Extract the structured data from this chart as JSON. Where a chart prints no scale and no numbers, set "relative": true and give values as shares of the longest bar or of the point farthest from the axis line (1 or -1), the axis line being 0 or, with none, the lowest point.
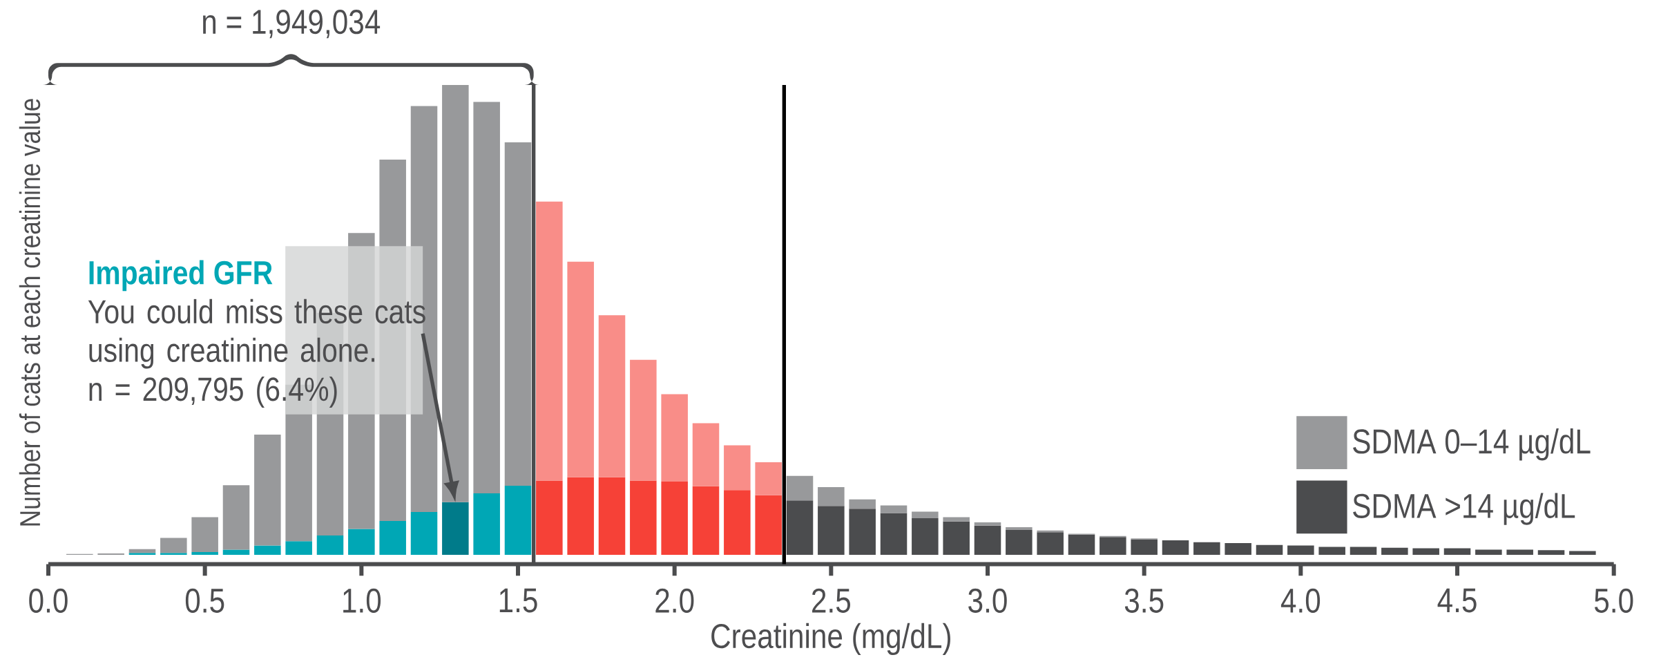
{
  "chart_data": {
    "type": "bar",
    "stacked": true,
    "relative": true,
    "xlabel": "Creatinine (mg/dL)",
    "ylabel": "Number of cats at each creatinine value",
    "x": [
      0.1,
      0.2,
      0.3,
      0.4,
      0.5,
      0.6,
      0.7,
      0.8,
      0.9,
      1.0,
      1.1,
      1.2,
      1.3,
      1.4,
      1.5,
      1.6,
      1.7,
      1.8,
      1.9,
      2.0,
      2.1,
      2.2,
      2.3,
      2.4,
      2.5,
      2.6,
      2.7,
      2.8,
      2.9,
      3.0,
      3.1,
      3.2,
      3.3,
      3.4,
      3.5,
      3.6,
      3.7,
      3.8,
      3.9,
      4.0,
      4.1,
      4.2,
      4.3,
      4.4,
      4.5,
      4.6,
      4.7,
      4.8,
      4.9
    ],
    "xlim": [
      0,
      5
    ],
    "xticks": [
      {
        "value": 0,
        "label": "0.0"
      },
      0.5,
      {
        "value": 1,
        "label": "1.0"
      },
      1.5,
      {
        "value": 2,
        "label": "2.0"
      },
      2.5,
      {
        "value": 3,
        "label": "3.0"
      },
      3.5,
      {
        "value": 4,
        "label": "4.0"
      },
      4.5,
      {
        "value": 5,
        "label": "5.0"
      }
    ],
    "series": [
      {
        "name": "SDMA >14 µg/dL",
        "color": "#4b4c4e",
        "values": [
          0,
          0,
          0.004,
          0.004,
          0.006,
          0.011,
          0.02,
          0.029,
          0.041,
          0.055,
          0.072,
          0.091,
          0.112,
          0.131,
          0.147,
          0.158,
          0.165,
          0.165,
          0.158,
          0.156,
          0.146,
          0.138,
          0.127,
          0.116,
          0.104,
          0.098,
          0.089,
          0.078,
          0.071,
          0.062,
          0.053,
          0.048,
          0.043,
          0.038,
          0.033,
          0.031,
          0.027,
          0.025,
          0.021,
          0.02,
          0.017,
          0.017,
          0.015,
          0.014,
          0.014,
          0.011,
          0.011,
          0.01,
          0.008
        ],
        "colors": [
          "#00a7b5",
          "#00a7b5",
          "#00a7b5",
          "#00a7b5",
          "#00a7b5",
          "#00a7b5",
          "#00a7b5",
          "#00a7b5",
          "#00a7b5",
          "#00a7b5",
          "#00a7b5",
          "#00a7b5",
          "#007b8a",
          "#00a7b5",
          "#00a7b5",
          "#f64137",
          "#f64137",
          "#f64137",
          "#f64137",
          "#f64137",
          "#f64137",
          "#f64137",
          "#f64137",
          "#4b4c4e",
          "#4b4c4e",
          "#4b4c4e",
          "#4b4c4e",
          "#4b4c4e",
          "#4b4c4e",
          "#4b4c4e",
          "#4b4c4e",
          "#4b4c4e",
          "#4b4c4e",
          "#4b4c4e",
          "#4b4c4e",
          "#4b4c4e",
          "#4b4c4e",
          "#4b4c4e",
          "#4b4c4e",
          "#4b4c4e",
          "#4b4c4e",
          "#4b4c4e",
          "#4b4c4e",
          "#4b4c4e",
          "#4b4c4e",
          "#4b4c4e",
          "#4b4c4e",
          "#4b4c4e",
          "#4b4c4e"
        ]
      },
      {
        "name": "SDMA 0–14 µg/dL",
        "color": "#98999b",
        "values": [
          0.002,
          0.003,
          0.008,
          0.032,
          0.074,
          0.137,
          0.236,
          0.333,
          0.474,
          0.63,
          0.769,
          0.864,
          0.888,
          0.833,
          0.731,
          0.594,
          0.459,
          0.345,
          0.257,
          0.186,
          0.134,
          0.095,
          0.07,
          0.052,
          0.04,
          0.02,
          0.016,
          0.014,
          0.009,
          0.007,
          0.006,
          0.004,
          0.002,
          0.002,
          0.002,
          0,
          0,
          0,
          0,
          0,
          0,
          0,
          0,
          0,
          0,
          0,
          0,
          0,
          0
        ],
        "colors": [
          "#98999b",
          "#98999b",
          "#98999b",
          "#98999b",
          "#98999b",
          "#98999b",
          "#98999b",
          "#98999b",
          "#98999b",
          "#98999b",
          "#98999b",
          "#98999b",
          "#98999b",
          "#98999b",
          "#98999b",
          "#f98d88",
          "#f98d88",
          "#f98d88",
          "#f98d88",
          "#f98d88",
          "#f98d88",
          "#f98d88",
          "#f98d88",
          "#98999b",
          "#98999b",
          "#98999b",
          "#98999b",
          "#98999b",
          "#98999b",
          "#98999b",
          "#98999b",
          "#98999b",
          "#98999b",
          "#98999b",
          "#98999b",
          "#98999b",
          "#98999b",
          "#98999b",
          "#98999b",
          "#98999b",
          "#98999b",
          "#98999b",
          "#98999b",
          "#98999b",
          "#98999b",
          "#98999b",
          "#98999b",
          "#98999b",
          "#98999b"
        ]
      }
    ],
    "ref_lines": [
      {
        "axis": "x",
        "value": 1.55,
        "color": "#4b4c4e"
      },
      {
        "axis": "x",
        "value": 2.35,
        "color": "#000000"
      }
    ],
    "annotations": [
      "n = 1,949,034",
      "Impaired GFR",
      "You could miss these cats using creatinine alone.",
      "n = 209,795 (6.4%)"
    ],
    "legend": "right"
  }
}
